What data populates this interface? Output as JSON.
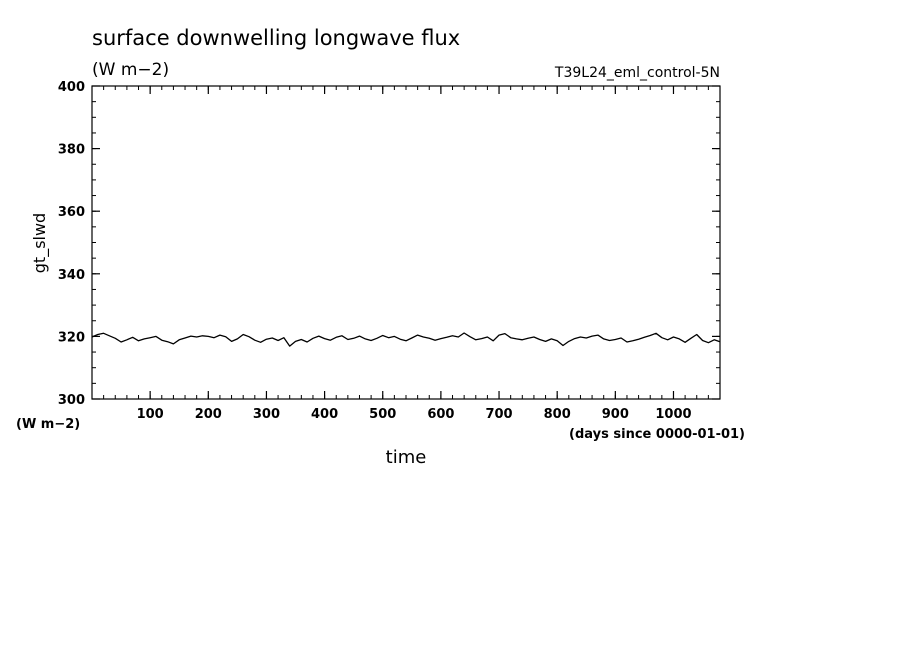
{
  "chart_data": {
    "type": "line",
    "title": "surface downwelling longwave flux",
    "subtitle": "(W m−2)",
    "run_label": "T39L24_eml_control-5N",
    "xlabel": "time",
    "ylabel": "gt_slwd",
    "x_unit": "(days since 0000-01-01)",
    "y_unit": "(W m−2)",
    "xlim": [
      0,
      1080
    ],
    "ylim": [
      300,
      400
    ],
    "x_ticks": [
      100,
      200,
      300,
      400,
      500,
      600,
      700,
      800,
      900,
      1000
    ],
    "x_tick_labels": [
      "100",
      "200",
      "300",
      "400",
      "500",
      "600",
      "700",
      "800",
      "900",
      "1000"
    ],
    "y_ticks": [
      300,
      320,
      340,
      360,
      380,
      400
    ],
    "y_tick_labels": [
      "300",
      "320",
      "340",
      "360",
      "380",
      "400"
    ],
    "grid": false,
    "series": [
      {
        "color": "#000000",
        "x": [
          0,
          10,
          20,
          30,
          40,
          50,
          60,
          70,
          80,
          90,
          100,
          110,
          120,
          130,
          140,
          150,
          160,
          170,
          180,
          190,
          200,
          210,
          220,
          230,
          240,
          250,
          260,
          270,
          280,
          290,
          300,
          310,
          320,
          330,
          340,
          350,
          360,
          370,
          380,
          390,
          400,
          410,
          420,
          430,
          440,
          450,
          460,
          470,
          480,
          490,
          500,
          510,
          520,
          530,
          540,
          550,
          560,
          570,
          580,
          590,
          600,
          610,
          620,
          630,
          640,
          650,
          660,
          670,
          680,
          690,
          700,
          710,
          720,
          730,
          740,
          750,
          760,
          770,
          780,
          790,
          800,
          810,
          820,
          830,
          840,
          850,
          860,
          870,
          880,
          890,
          900,
          910,
          920,
          930,
          940,
          950,
          960,
          970,
          980,
          990,
          1000,
          1010,
          1020,
          1030,
          1040,
          1050,
          1060,
          1070,
          1080
        ],
        "y": [
          319.8,
          320.6,
          321.0,
          320.2,
          319.4,
          318.2,
          318.9,
          319.7,
          318.6,
          319.2,
          319.6,
          320.0,
          318.8,
          318.3,
          317.6,
          318.9,
          319.5,
          320.1,
          319.8,
          320.2,
          320.0,
          319.6,
          320.4,
          319.9,
          318.4,
          319.2,
          320.6,
          319.9,
          318.8,
          318.1,
          319.1,
          319.5,
          318.7,
          319.6,
          316.9,
          318.4,
          319.0,
          318.2,
          319.4,
          320.1,
          319.3,
          318.8,
          319.7,
          320.2,
          319.0,
          319.4,
          320.1,
          319.2,
          318.7,
          319.4,
          320.3,
          319.6,
          320.0,
          319.1,
          318.6,
          319.5,
          320.4,
          319.8,
          319.4,
          318.8,
          319.3,
          319.7,
          320.2,
          319.8,
          321.1,
          319.9,
          318.9,
          319.3,
          319.8,
          318.6,
          320.4,
          320.9,
          319.6,
          319.2,
          318.9,
          319.4,
          319.8,
          319.0,
          318.4,
          319.2,
          318.6,
          317.1,
          318.4,
          319.3,
          319.8,
          319.5,
          320.1,
          320.4,
          319.2,
          318.7,
          319.0,
          319.5,
          318.2,
          318.6,
          319.1,
          319.7,
          320.3,
          321.0,
          319.6,
          318.9,
          319.8,
          319.2,
          318.1,
          319.4,
          320.6,
          318.7,
          318.0,
          318.9,
          318.3
        ]
      }
    ]
  }
}
